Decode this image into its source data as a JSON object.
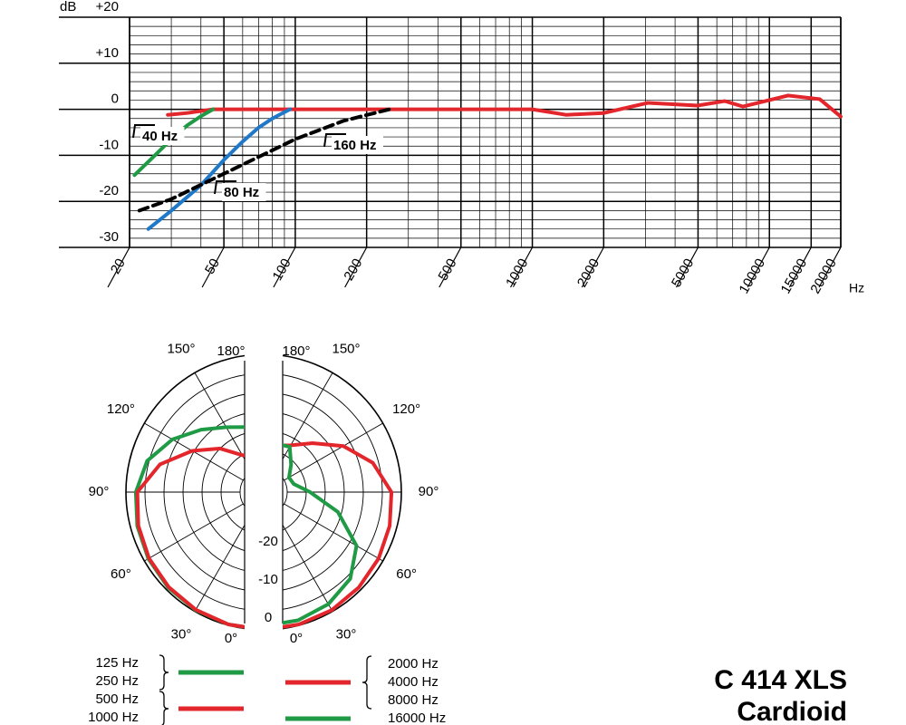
{
  "chart_data": [
    {
      "type": "line",
      "xscale": "log",
      "xlabel": "Hz",
      "ylabel": "dB",
      "xlim": [
        20,
        20000
      ],
      "ylim": [
        -30,
        20
      ],
      "xticks": [
        20,
        50,
        100,
        200,
        500,
        1000,
        2000,
        5000,
        10000,
        15000,
        20000
      ],
      "xminor": [
        30,
        40,
        60,
        70,
        80,
        90,
        300,
        400,
        600,
        700,
        800,
        900,
        3000,
        4000,
        6000,
        7000,
        8000,
        9000
      ],
      "yticks": [
        {
          "value": 20,
          "label": "+20"
        },
        {
          "value": 10,
          "label": "+10"
        },
        0,
        -10,
        -20,
        -30
      ],
      "yminor": [
        18,
        16,
        14,
        12,
        8,
        6,
        4,
        2,
        -2,
        -4,
        -6,
        -8,
        -12,
        -14,
        -16,
        -18,
        -22,
        -24,
        -26,
        -28
      ],
      "series": [
        {
          "color": "#e3262b",
          "x": [
            29,
            35,
            45,
            1000,
            1390,
            2000,
            3070,
            4980,
            6470,
            7730,
            12000,
            16300,
            20000
          ],
          "values": [
            -1.2,
            -0.8,
            0,
            0,
            -1.2,
            -0.8,
            1.4,
            0.8,
            1.8,
            0.6,
            3,
            2.2,
            -1.6
          ]
        },
        {
          "name": "40 Hz",
          "color": "#1f9a45",
          "x": [
            21,
            25,
            30,
            35,
            40,
            45
          ],
          "values": [
            -14.3,
            -10.5,
            -6.5,
            -3.5,
            -1.5,
            0
          ]
        },
        {
          "name": "80 Hz",
          "color": "#1f78c8",
          "x": [
            24,
            30,
            40,
            50,
            60,
            70,
            80,
            95
          ],
          "values": [
            -26,
            -22,
            -16.5,
            -11,
            -7,
            -4,
            -2,
            0
          ]
        },
        {
          "name": "160 Hz",
          "color": "#000000",
          "dash": true,
          "x": [
            22,
            30,
            50,
            100,
            160,
            250
          ],
          "values": [
            -22,
            -19.5,
            -14,
            -6.5,
            -2.5,
            0
          ]
        }
      ]
    },
    {
      "type": "polar",
      "title": "C 414 XLS",
      "subtitle": "Cardioid",
      "rlim": [
        -30,
        0
      ],
      "rticks": [
        0,
        -10,
        -20
      ],
      "rminor": [
        -5,
        -15,
        -25,
        -30
      ],
      "thetaticks": [
        {
          "value": 0,
          "label": "0°"
        },
        {
          "value": 30,
          "label": "30°"
        },
        {
          "value": 60,
          "label": "60°"
        },
        {
          "value": 90,
          "label": "90°"
        },
        {
          "value": 120,
          "label": "120°"
        },
        {
          "value": 150,
          "label": "150°"
        },
        {
          "value": 180,
          "label": "180°"
        }
      ],
      "series": [
        {
          "name": [
            "125 Hz",
            "250 Hz"
          ],
          "color": "#1f9a45",
          "side": "left",
          "theta": [
            0,
            15,
            30,
            45,
            60,
            75,
            90,
            105,
            120,
            135,
            150,
            165,
            180
          ],
          "values": [
            0,
            -0.2,
            -0.4,
            -0.7,
            -1.2,
            -1.8,
            -2.6,
            -4.5,
            -8.5,
            -13,
            -16.5,
            -18.5,
            -19
          ]
        },
        {
          "name": [
            "500 Hz",
            "1000 Hz"
          ],
          "color": "#e3262b",
          "side": "left",
          "theta": [
            0,
            15,
            30,
            45,
            60,
            75,
            90,
            105,
            120,
            135,
            150,
            165,
            180
          ],
          "values": [
            0,
            -0.2,
            -0.5,
            -0.9,
            -1.4,
            -2.1,
            -3,
            -8,
            -14.5,
            -20,
            -25,
            -26.5,
            -27
          ]
        },
        {
          "name": [
            "2000 Hz",
            "4000 Hz",
            "8000 Hz"
          ],
          "color": "#e3262b",
          "side": "right",
          "theta": [
            0,
            15,
            30,
            45,
            60,
            75,
            90,
            105,
            120,
            135,
            150,
            165,
            180
          ],
          "values": [
            0,
            -0.2,
            -0.4,
            -0.8,
            -1.3,
            -1.9,
            -2.6,
            -6.5,
            -12,
            -18,
            -22,
            -23.5,
            -24
          ]
        },
        {
          "name": [
            "16000 Hz"
          ],
          "color": "#1f9a45",
          "side": "right",
          "theta": [
            0,
            15,
            30,
            45,
            60,
            75,
            90,
            105,
            120,
            135,
            150,
            165,
            180
          ],
          "values": [
            -1,
            -1.3,
            -2.2,
            -4,
            -8,
            -16,
            -24,
            -28,
            -28.5,
            -26,
            -22.5,
            -23,
            -24
          ]
        }
      ]
    }
  ]
}
